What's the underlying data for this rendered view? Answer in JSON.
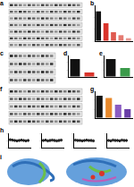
{
  "panel_labels": [
    "a",
    "b",
    "c",
    "d",
    "e",
    "f",
    "g",
    "h",
    "i"
  ],
  "chart_data": [
    {
      "type": "bar",
      "categories": [
        null,
        null,
        null,
        null,
        null
      ],
      "values": [
        1.0,
        0.6,
        0.3,
        0.2,
        0.1
      ],
      "colors": [
        "#111111",
        "#d9342b",
        "#e05a50",
        "#e57b72",
        "#ea9a93"
      ],
      "ylim": [
        0,
        1.2
      ],
      "yticks": [
        0,
        0.4,
        0.8,
        1.2
      ],
      "grid": false,
      "tick_labels": false
    },
    {
      "type": "bar",
      "categories": [
        null,
        null
      ],
      "values": [
        1.0,
        0.25
      ],
      "colors": [
        "#111111",
        "#d9342b"
      ],
      "ylim": [
        0,
        1.2
      ],
      "yticks": [
        0,
        0.4,
        0.8,
        1.2
      ],
      "grid": false,
      "tick_labels": false
    },
    {
      "type": "bar",
      "categories": [
        null,
        null
      ],
      "values": [
        1.0,
        0.5
      ],
      "colors": [
        "#111111",
        "#3a9a4a"
      ],
      "ylim": [
        0,
        1.2
      ],
      "yticks": [
        0,
        0.4,
        0.8,
        1.2
      ],
      "grid": false,
      "tick_labels": false
    },
    {
      "type": "bar",
      "categories": [
        null,
        null,
        null,
        null
      ],
      "values": [
        1.0,
        0.9,
        0.6,
        0.4
      ],
      "colors": [
        "#111111",
        "#e8892b",
        "#8a5cc2",
        "#6a3fa8"
      ],
      "ylim": [
        0,
        1.2
      ],
      "yticks": [
        0,
        0.4,
        0.8,
        1.2
      ],
      "grid": false,
      "tick_labels": false
    },
    {
      "type": "scatter",
      "x": [
        1,
        2,
        3,
        4,
        5,
        6,
        7,
        8,
        9
      ],
      "values": [
        0.1,
        0.05,
        0.0,
        -0.05,
        0.0,
        0.05,
        0.0,
        -0.05,
        0.0
      ],
      "color": "#222222",
      "xlim": [
        0,
        10
      ],
      "xticks": [
        0,
        5,
        10
      ],
      "ylim": [
        -1,
        1
      ],
      "yticks": [
        -1,
        0,
        1
      ],
      "grid": false,
      "tick_labels": false
    },
    {
      "type": "scatter",
      "x": [
        1,
        2,
        3,
        4,
        5,
        6,
        7,
        8,
        9
      ],
      "values": [
        0.0,
        0.05,
        -0.05,
        0.0,
        0.05,
        0.0,
        -0.05,
        0.0,
        0.05
      ],
      "color": "#222222",
      "xlim": [
        0,
        10
      ],
      "xticks": [
        0,
        5,
        10
      ],
      "ylim": [
        -1,
        1
      ],
      "yticks": [
        -1,
        0,
        1
      ],
      "grid": false,
      "tick_labels": false
    },
    {
      "type": "scatter",
      "x": [
        1,
        2,
        3,
        4,
        5,
        6,
        7,
        8,
        9
      ],
      "values": [
        0.05,
        0.0,
        0.0,
        -0.05,
        0.0,
        0.05,
        0.0,
        0.0,
        -0.05
      ],
      "color": "#222222",
      "xlim": [
        0,
        10
      ],
      "xticks": [
        0,
        5,
        10
      ],
      "ylim": [
        -1,
        1
      ],
      "yticks": [
        -1,
        0,
        1
      ],
      "grid": false,
      "tick_labels": false
    },
    {
      "type": "scatter",
      "x": [
        1,
        2,
        3,
        4,
        5,
        6,
        7,
        8,
        9
      ],
      "values": [
        0.0,
        -0.05,
        0.05,
        0.0,
        0.0,
        -0.05,
        0.05,
        0.0,
        0.0
      ],
      "color": "#222222",
      "xlim": [
        0,
        10
      ],
      "xticks": [
        0,
        5,
        10
      ],
      "ylim": [
        -1,
        1
      ],
      "yticks": [
        -1,
        0,
        1
      ],
      "grid": false,
      "tick_labels": false
    }
  ]
}
